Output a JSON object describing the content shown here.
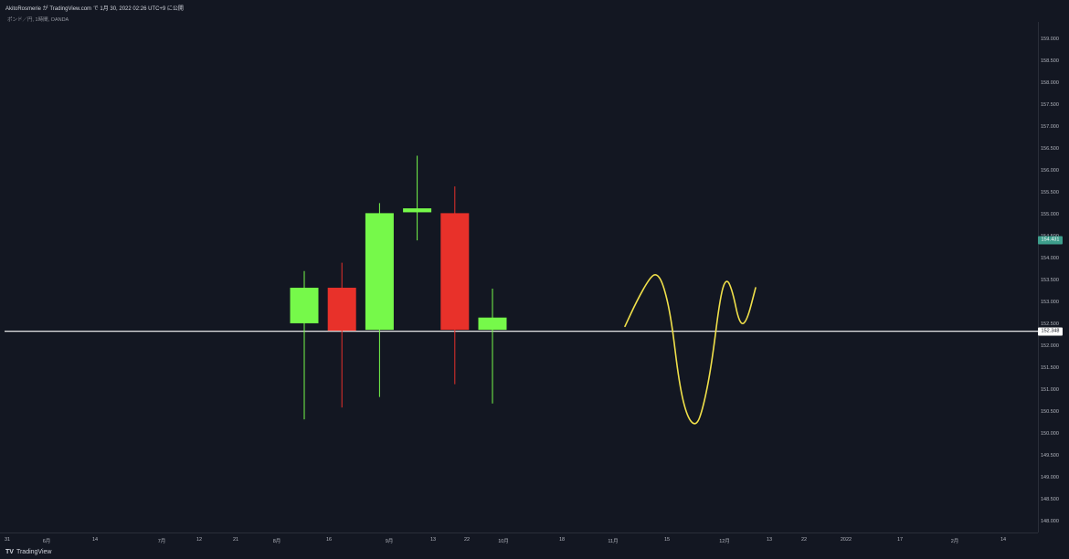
{
  "header": {
    "title_line": "AkitoRosmerie が TradingView.com で 1月 30, 2022 02:26 UTC+9 に公開",
    "symbol_line": "ポンド／円, 1時間, OANDA"
  },
  "footer": {
    "brand": "TradingView",
    "brand_icon": "tradingview-logo-icon"
  },
  "colors": {
    "background": "#131722",
    "up": "#76f94a",
    "down": "#e8312a",
    "drawing": "#f0e04a",
    "horizontal_line": "#ffffff",
    "current_price_label": "#3d9e8c"
  },
  "price_labels": {
    "current": "154.431",
    "line": "152.348"
  },
  "chart_data": {
    "type": "candlestick",
    "title": "",
    "xlabel": "",
    "ylabel": "",
    "ylim": [
      147.76,
      159.4
    ],
    "grid": false,
    "y_ticks": [
      "159.000",
      "158.500",
      "158.000",
      "157.500",
      "157.000",
      "156.500",
      "156.000",
      "155.500",
      "155.000",
      "154.500",
      "154.000",
      "153.500",
      "153.000",
      "152.500",
      "152.000",
      "151.500",
      "151.000",
      "150.500",
      "150.000",
      "149.500",
      "149.000",
      "148.500",
      "148.000"
    ],
    "x_ticks": [
      "31",
      "6月",
      "14",
      "7月",
      "12",
      "21",
      "8月",
      "16",
      "9月",
      "13",
      "22",
      "10月",
      "18",
      "11月",
      "15",
      "12月",
      "13",
      "22",
      "2022",
      "17",
      "2月",
      "14"
    ],
    "candles": [
      {
        "open": 152.53,
        "high": 153.72,
        "low": 150.34,
        "close": 153.34
      },
      {
        "open": 153.34,
        "high": 153.91,
        "low": 150.61,
        "close": 152.36
      },
      {
        "open": 152.38,
        "high": 155.27,
        "low": 150.85,
        "close": 155.04
      },
      {
        "open": 155.06,
        "high": 156.35,
        "low": 154.42,
        "close": 155.15
      },
      {
        "open": 155.04,
        "high": 155.65,
        "low": 151.14,
        "close": 152.38
      },
      {
        "open": 152.38,
        "high": 153.32,
        "low": 150.7,
        "close": 152.66
      }
    ],
    "horizontal_line": 152.348,
    "current_price": 154.431,
    "freehand_curve": [
      {
        "x_step": 0,
        "y": 152.46
      },
      {
        "x_step": 0.6,
        "y": 153.05
      },
      {
        "x_step": 1.2,
        "y": 153.54
      },
      {
        "x_step": 1.55,
        "y": 153.68
      },
      {
        "x_step": 1.9,
        "y": 153.44
      },
      {
        "x_step": 2.3,
        "y": 152.66
      },
      {
        "x_step": 2.7,
        "y": 151.14
      },
      {
        "x_step": 3.1,
        "y": 150.38
      },
      {
        "x_step": 3.55,
        "y": 150.17
      },
      {
        "x_step": 3.9,
        "y": 150.62
      },
      {
        "x_step": 4.3,
        "y": 151.55
      },
      {
        "x_step": 4.75,
        "y": 153.18
      },
      {
        "x_step": 5.05,
        "y": 153.57
      },
      {
        "x_step": 5.35,
        "y": 153.27
      },
      {
        "x_step": 5.7,
        "y": 152.5
      },
      {
        "x_step": 6.05,
        "y": 152.55
      },
      {
        "x_step": 6.5,
        "y": 153.34
      }
    ]
  }
}
